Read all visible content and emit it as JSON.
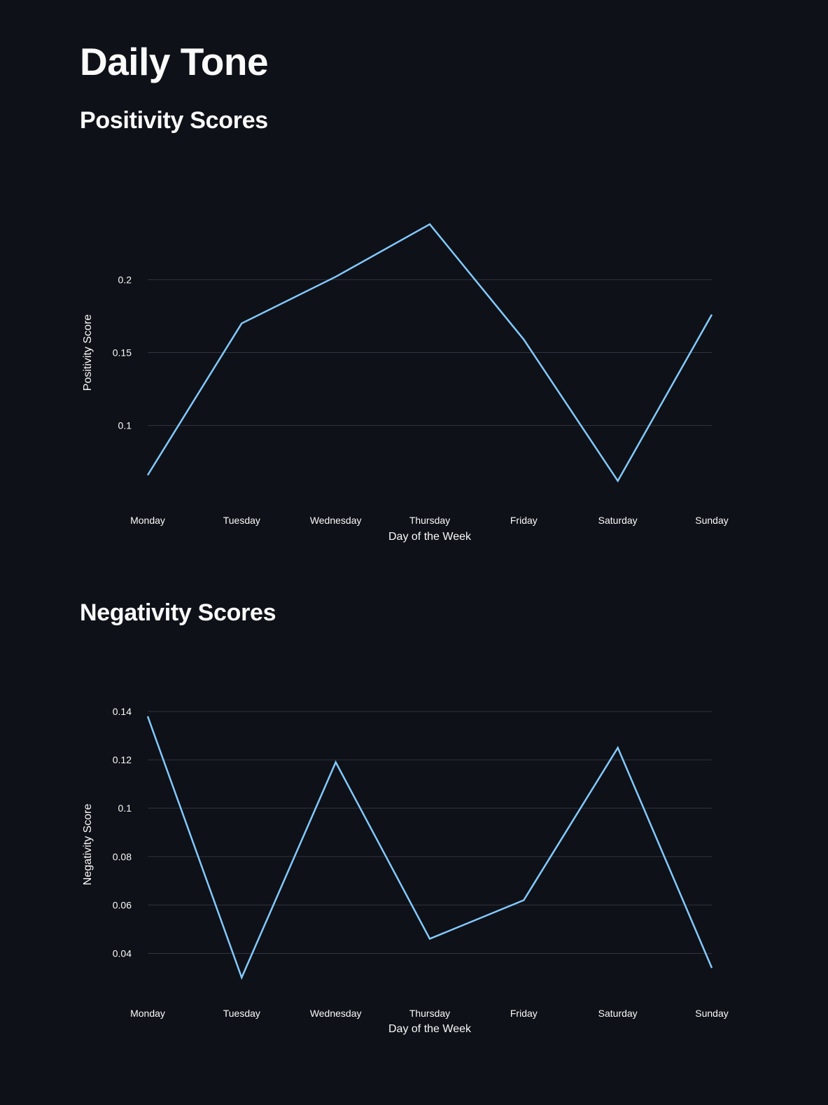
{
  "page": {
    "title": "Daily Tone"
  },
  "sections": [
    {
      "title": "Positivity Scores"
    },
    {
      "title": "Negativity Scores"
    }
  ],
  "colors": {
    "background": "#0e1117",
    "text": "#fafafa",
    "line": "#83c9ff",
    "grid": "#31333f"
  },
  "chart_data": [
    {
      "type": "line",
      "categories": [
        "Monday",
        "Tuesday",
        "Wednesday",
        "Thursday",
        "Friday",
        "Saturday",
        "Sunday"
      ],
      "series": [
        {
          "values": [
            0.066,
            0.17,
            0.202,
            0.238,
            0.159,
            0.062,
            0.176
          ]
        }
      ],
      "xlabel": "Day of the Week",
      "ylabel": "Positivity Score",
      "ylim": [
        0.06,
        0.24
      ],
      "yticks": [
        0.1,
        0.15,
        0.2
      ],
      "ytick_labels": [
        "0.1",
        "0.15",
        "0.2"
      ],
      "grid": true,
      "legend": "none"
    },
    {
      "type": "line",
      "categories": [
        "Monday",
        "Tuesday",
        "Wednesday",
        "Thursday",
        "Friday",
        "Saturday",
        "Sunday"
      ],
      "series": [
        {
          "values": [
            0.138,
            0.03,
            0.119,
            0.046,
            0.062,
            0.125,
            0.034
          ]
        }
      ],
      "xlabel": "Day of the Week",
      "ylabel": "Negativity Score",
      "ylim": [
        0.03,
        0.14
      ],
      "yticks": [
        0.04,
        0.06,
        0.08,
        0.1,
        0.12,
        0.14
      ],
      "ytick_labels": [
        "0.04",
        "0.06",
        "0.08",
        "0.1",
        "0.12",
        "0.14"
      ],
      "grid": true,
      "legend": "none"
    }
  ]
}
